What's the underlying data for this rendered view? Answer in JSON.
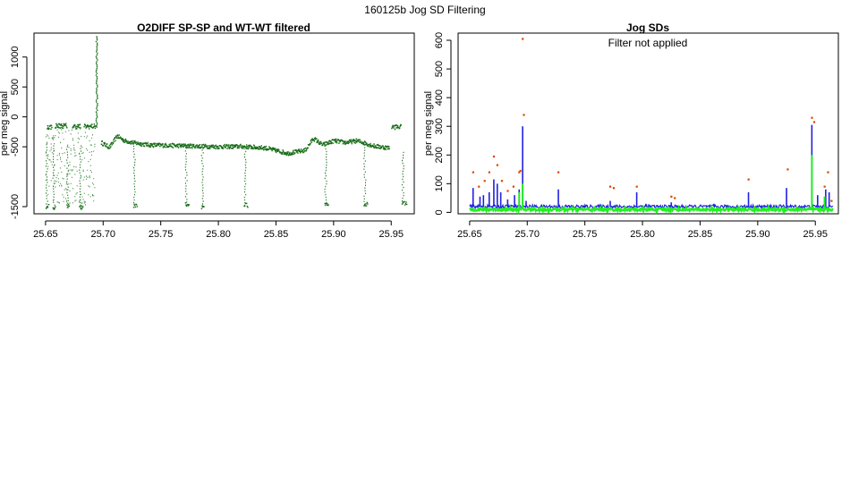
{
  "page": {
    "suptitle": "160125b   Jog SD Filtering"
  },
  "chart_data": [
    {
      "type": "scatter",
      "title": "O2DIFF SP-SP and WT-WT filtered",
      "xlabel": "",
      "ylabel": "per meg signal",
      "xlim": [
        25.64,
        25.97
      ],
      "ylim": [
        -1620,
        1400
      ],
      "x_ticks": [
        25.65,
        25.7,
        25.75,
        25.8,
        25.85,
        25.9,
        25.95
      ],
      "x_tick_labels": [
        "25.65",
        "25.70",
        "25.75",
        "25.80",
        "25.85",
        "25.90",
        "25.95"
      ],
      "y_ticks": [
        -1500,
        -500,
        0,
        500,
        1000
      ],
      "y_tick_labels": [
        "-1500",
        "-500",
        "0",
        "500",
        "1000"
      ],
      "grid": false,
      "series": [
        {
          "color": "#1a6e1a",
          "baseline": [
            [
              25.698,
              -430
            ],
            [
              25.705,
              -510
            ],
            [
              25.712,
              -320
            ],
            [
              25.718,
              -400
            ],
            [
              25.728,
              -440
            ],
            [
              25.74,
              -470
            ],
            [
              25.76,
              -480
            ],
            [
              25.78,
              -490
            ],
            [
              25.8,
              -500
            ],
            [
              25.82,
              -495
            ],
            [
              25.84,
              -520
            ],
            [
              25.86,
              -610
            ],
            [
              25.875,
              -560
            ],
            [
              25.882,
              -360
            ],
            [
              25.89,
              -470
            ],
            [
              25.9,
              -400
            ],
            [
              25.91,
              -430
            ],
            [
              25.92,
              -400
            ],
            [
              25.935,
              -490
            ],
            [
              25.948,
              -520
            ]
          ],
          "high_segments": [
            [
              25.651,
              25.655,
              -170
            ],
            [
              25.658,
              25.668,
              -150
            ],
            [
              25.673,
              25.68,
              -160
            ],
            [
              25.683,
              25.693,
              -160
            ],
            [
              25.95,
              25.958,
              -170
            ]
          ],
          "low_segments": [
            [
              25.65,
              25.652,
              -1500
            ],
            [
              25.656,
              25.658,
              -1520
            ],
            [
              25.668,
              25.67,
              -1490
            ],
            [
              25.679,
              25.682,
              -1520
            ],
            [
              25.726,
              25.729,
              -1480
            ],
            [
              25.771,
              25.774,
              -1470
            ],
            [
              25.785,
              25.787,
              -1500
            ],
            [
              25.822,
              25.825,
              -1480
            ],
            [
              25.892,
              25.895,
              -1480
            ],
            [
              25.926,
              25.929,
              -1460
            ],
            [
              25.959,
              25.963,
              -1450
            ]
          ],
          "spike": {
            "x": 25.694,
            "peak": 1350,
            "base": -170
          }
        }
      ]
    },
    {
      "type": "line",
      "title": "Jog SDs",
      "annotation": "Filter not applied",
      "xlabel": "",
      "ylabel": "per meg signal",
      "xlim": [
        25.64,
        25.97
      ],
      "ylim": [
        -5,
        625
      ],
      "x_ticks": [
        25.65,
        25.7,
        25.75,
        25.8,
        25.85,
        25.9,
        25.95
      ],
      "x_tick_labels": [
        "25.65",
        "25.70",
        "25.75",
        "25.80",
        "25.85",
        "25.90",
        "25.95"
      ],
      "y_ticks": [
        0,
        100,
        200,
        300,
        400,
        500,
        600
      ],
      "y_tick_labels": [
        "0",
        "100",
        "200",
        "300",
        "400",
        "500",
        "600"
      ],
      "grid": false,
      "series": [
        {
          "color": "#2020e0",
          "baseline": 20,
          "spikes": [
            [
              25.653,
              85
            ],
            [
              25.659,
              55
            ],
            [
              25.662,
              60
            ],
            [
              25.667,
              70
            ],
            [
              25.671,
              115
            ],
            [
              25.674,
              100
            ],
            [
              25.677,
              70
            ],
            [
              25.683,
              45
            ],
            [
              25.689,
              60
            ],
            [
              25.693,
              80
            ],
            [
              25.696,
              300
            ],
            [
              25.699,
              40
            ],
            [
              25.727,
              80
            ],
            [
              25.772,
              40
            ],
            [
              25.795,
              70
            ],
            [
              25.803,
              30
            ],
            [
              25.825,
              35
            ],
            [
              25.862,
              30
            ],
            [
              25.892,
              70
            ],
            [
              25.925,
              85
            ],
            [
              25.947,
              305
            ],
            [
              25.952,
              60
            ],
            [
              25.959,
              80
            ],
            [
              25.962,
              70
            ]
          ]
        },
        {
          "color": "#22ee22",
          "baseline": 10,
          "spikes": [
            [
              25.693,
              70
            ],
            [
              25.696,
              100
            ],
            [
              25.947,
              200
            ],
            [
              25.958,
              55
            ],
            [
              25.73,
              20
            ],
            [
              25.8,
              20
            ],
            [
              25.86,
              25
            ]
          ]
        },
        {
          "color": "#dd4400",
          "points": [
            [
              25.653,
              140
            ],
            [
              25.658,
              90
            ],
            [
              25.663,
              110
            ],
            [
              25.667,
              140
            ],
            [
              25.671,
              195
            ],
            [
              25.674,
              165
            ],
            [
              25.678,
              110
            ],
            [
              25.683,
              75
            ],
            [
              25.688,
              90
            ],
            [
              25.693,
              140
            ],
            [
              25.694,
              145
            ],
            [
              25.696,
              605
            ],
            [
              25.697,
              340
            ],
            [
              25.727,
              140
            ],
            [
              25.772,
              90
            ],
            [
              25.775,
              85
            ],
            [
              25.795,
              90
            ],
            [
              25.825,
              55
            ],
            [
              25.828,
              50
            ],
            [
              25.892,
              115
            ],
            [
              25.926,
              150
            ],
            [
              25.947,
              330
            ],
            [
              25.949,
              315
            ],
            [
              25.958,
              90
            ],
            [
              25.961,
              140
            ],
            [
              25.964,
              40
            ]
          ]
        }
      ]
    }
  ]
}
